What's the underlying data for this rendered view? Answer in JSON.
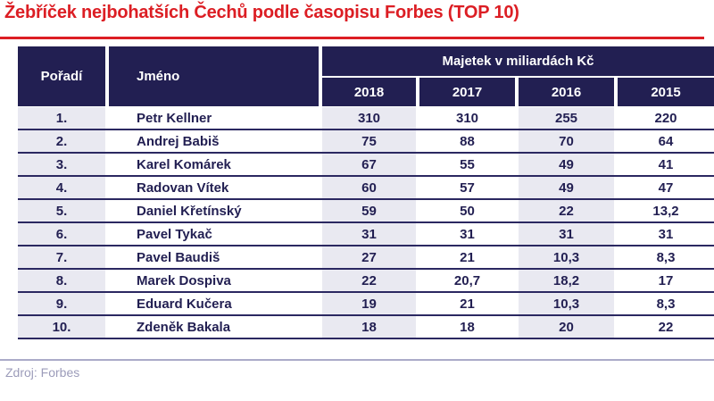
{
  "title": "Žebříček nejbohatších Čechů podle časopisu Forbes (TOP 10)",
  "source": "Zdroj: Forbes",
  "colors": {
    "accent_red": "#dc1e24",
    "header_navy": "#221f52",
    "cell_gray": "#e9e9f1",
    "row_separator_navy": "#2b2861",
    "source_gray": "#9c9cba"
  },
  "chart_data": {
    "type": "table",
    "title": "Žebříček nejbohatších Čechů podle časopisu Forbes (TOP 10)",
    "column_group": "Majetek v miliardách Kč",
    "columns": [
      "Pořadí",
      "Jméno",
      "2018",
      "2017",
      "2016",
      "2015"
    ],
    "rows": [
      [
        "1.",
        "Petr Kellner",
        "310",
        "310",
        "255",
        "220"
      ],
      [
        "2.",
        "Andrej Babiš",
        "75",
        "88",
        "70",
        "64"
      ],
      [
        "3.",
        "Karel Komárek",
        "67",
        "55",
        "49",
        "41"
      ],
      [
        "4.",
        "Radovan Vítek",
        "60",
        "57",
        "49",
        "47"
      ],
      [
        "5.",
        "Daniel Křetínský",
        "59",
        "50",
        "22",
        "13,2"
      ],
      [
        "6.",
        "Pavel Tykač",
        "31",
        "31",
        "31",
        "31"
      ],
      [
        "7.",
        "Pavel Baudiš",
        "27",
        "21",
        "10,3",
        "8,3"
      ],
      [
        "8.",
        "Marek Dospiva",
        "22",
        "20,7",
        "18,2",
        "17"
      ],
      [
        "9.",
        "Eduard Kučera",
        "19",
        "21",
        "10,3",
        "8,3"
      ],
      [
        "10.",
        "Zdeněk Bakala",
        "18",
        "18",
        "20",
        "22"
      ]
    ],
    "source": "Zdroj: Forbes"
  }
}
